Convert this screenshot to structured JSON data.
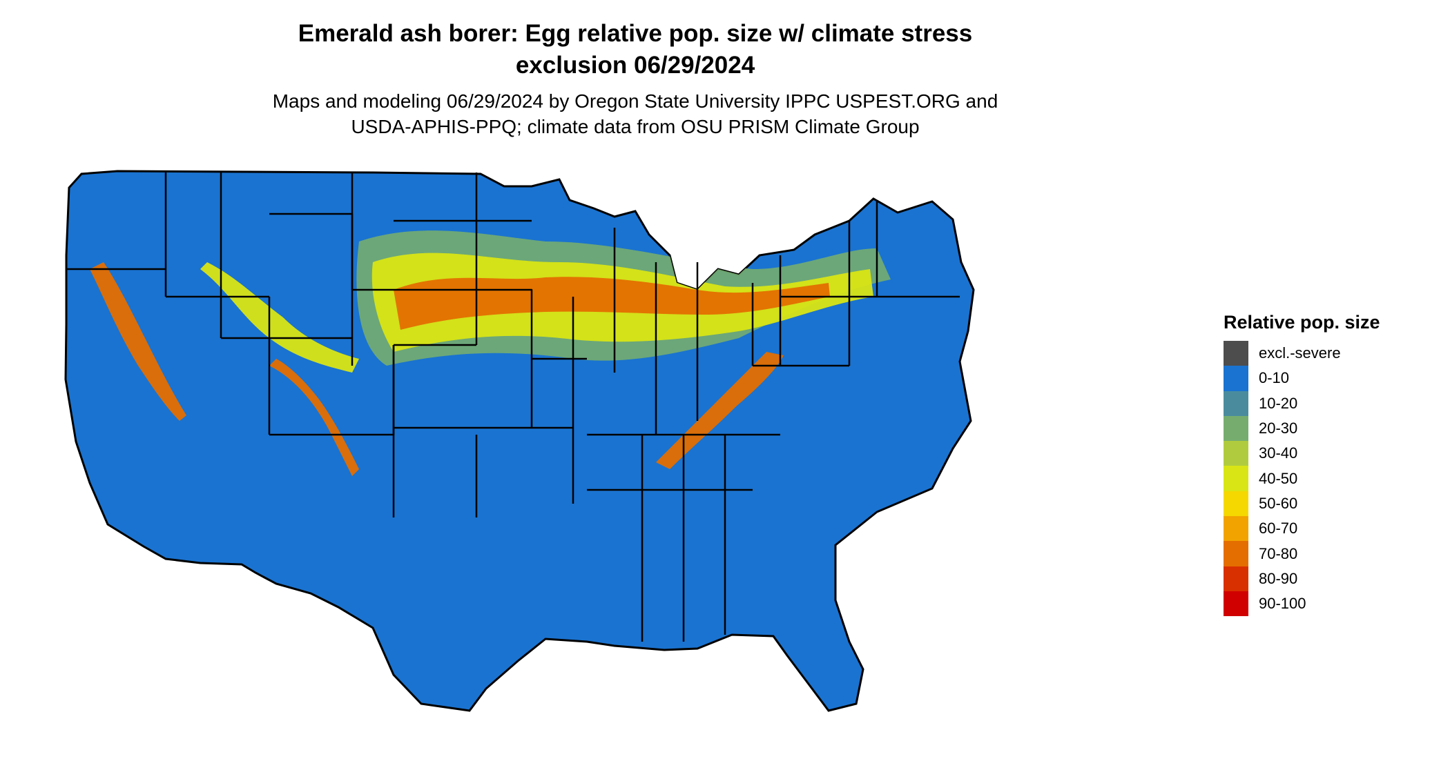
{
  "title_line1": "Emerald ash borer: Egg relative pop. size w/ climate stress",
  "title_line2": "exclusion 06/29/2024",
  "subtitle_line1": "Maps and modeling 06/29/2024 by Oregon State University IPPC USPEST.ORG and",
  "subtitle_line2": "USDA-APHIS-PPQ; climate data from OSU PRISM Climate Group",
  "map_colors": {
    "land": "#1a73d0",
    "border": "#000000",
    "band20_30": "#76ad6f",
    "band40_50": "#d9e514",
    "band60_70": "#f2a300",
    "band70_80": "#e46e00",
    "band80_90": "#d93000",
    "band90_100": "#d00000"
  },
  "legend": {
    "title": "Relative pop. size",
    "items": [
      {
        "label": "excl.-severe",
        "color": "#4d4d4d"
      },
      {
        "label": "0-10",
        "color": "#1a73d0"
      },
      {
        "label": "10-20",
        "color": "#4a8c9e"
      },
      {
        "label": "20-30",
        "color": "#76ad6f"
      },
      {
        "label": "30-40",
        "color": "#b0cc3e"
      },
      {
        "label": "40-50",
        "color": "#d9e514"
      },
      {
        "label": "50-60",
        "color": "#f5d800"
      },
      {
        "label": "60-70",
        "color": "#f2a300"
      },
      {
        "label": "70-80",
        "color": "#e46e00"
      },
      {
        "label": "80-90",
        "color": "#d93000"
      },
      {
        "label": "90-100",
        "color": "#d00000"
      }
    ]
  }
}
